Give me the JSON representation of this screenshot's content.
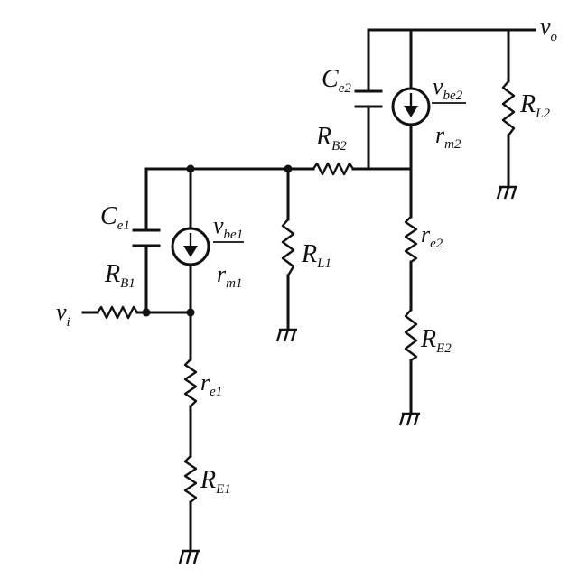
{
  "labels": {
    "vi": {
      "main": "v",
      "sub": "i"
    },
    "vo": {
      "main": "v",
      "sub": "o"
    },
    "ce1": {
      "main": "C",
      "sub": "e1"
    },
    "rb1": {
      "main": "R",
      "sub": "B1"
    },
    "vbe1": {
      "main": "v",
      "sub": "be1"
    },
    "rm1": {
      "main": "r",
      "sub": "m1"
    },
    "re1": {
      "main": "r",
      "sub": "e1"
    },
    "RE1": {
      "main": "R",
      "sub": "E1"
    },
    "rl1": {
      "main": "R",
      "sub": "L1"
    },
    "rb2": {
      "main": "R",
      "sub": "B2"
    },
    "ce2": {
      "main": "C",
      "sub": "e2"
    },
    "vbe2": {
      "main": "v",
      "sub": "be2"
    },
    "rm2": {
      "main": "r",
      "sub": "m2"
    },
    "rl2": {
      "main": "R",
      "sub": "L2"
    },
    "re2": {
      "main": "r",
      "sub": "e2"
    },
    "RE2": {
      "main": "R",
      "sub": "E2"
    }
  }
}
